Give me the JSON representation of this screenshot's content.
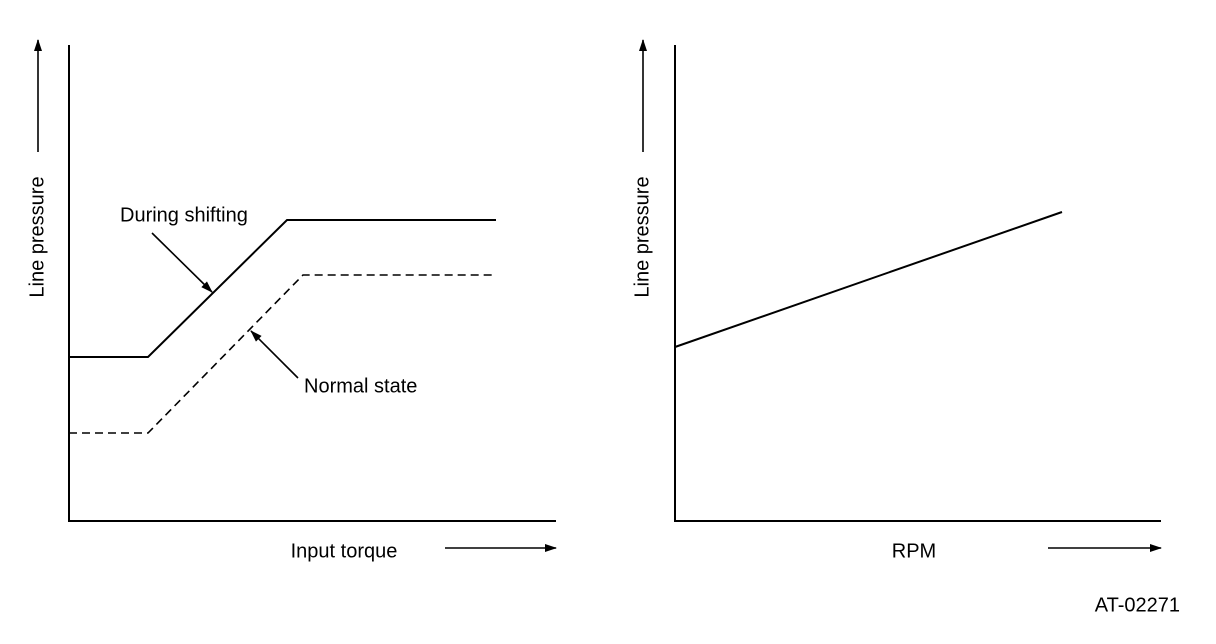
{
  "left": {
    "y_label": "Line pressure",
    "x_label": "Input torque",
    "annotations": [
      "During shifting",
      "Normal state"
    ]
  },
  "right": {
    "y_label": "Line pressure",
    "x_label": "RPM"
  },
  "figure_id": "AT-02271"
}
